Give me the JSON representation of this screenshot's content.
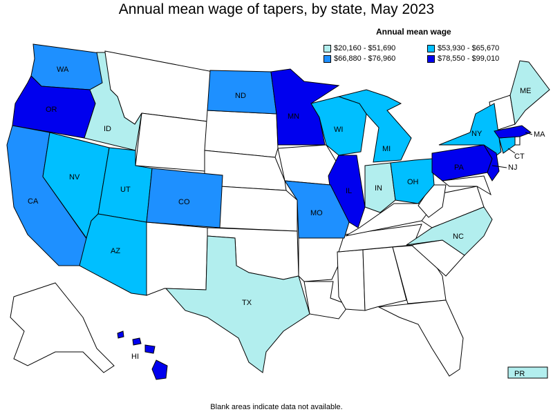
{
  "title": "Annual mean wage of tapers, by state, May 2023",
  "legend": {
    "title": "Annual mean wage",
    "items": [
      {
        "label": "$20,160 - $51,690",
        "color": "#b2eeee"
      },
      {
        "label": "$53,930 - $65,670",
        "color": "#00bfff"
      },
      {
        "label": "$66,880 - $76,960",
        "color": "#1e90ff"
      },
      {
        "label": "$78,550 - $99,010",
        "color": "#0000ee"
      }
    ]
  },
  "footnote": "Blank areas indicate data not available.",
  "states": {
    "WA": {
      "label": "WA",
      "tier": 2
    },
    "OR": {
      "label": "OR",
      "tier": 3
    },
    "ID": {
      "label": "ID",
      "tier": 0
    },
    "CA": {
      "label": "CA",
      "tier": 2
    },
    "NV": {
      "label": "NV",
      "tier": 1
    },
    "UT": {
      "label": "UT",
      "tier": 1
    },
    "AZ": {
      "label": "AZ",
      "tier": 1
    },
    "CO": {
      "label": "CO",
      "tier": 2
    },
    "ND": {
      "label": "ND",
      "tier": 2
    },
    "MN": {
      "label": "MN",
      "tier": 3
    },
    "WI": {
      "label": "WI",
      "tier": 1
    },
    "MI": {
      "label": "MI",
      "tier": 1
    },
    "IL": {
      "label": "IL",
      "tier": 3
    },
    "IN": {
      "label": "IN",
      "tier": 0
    },
    "OH": {
      "label": "OH",
      "tier": 1
    },
    "MO": {
      "label": "MO",
      "tier": 2
    },
    "TX": {
      "label": "TX",
      "tier": 0
    },
    "NC": {
      "label": "NC",
      "tier": 0
    },
    "PA": {
      "label": "PA",
      "tier": 3
    },
    "NY": {
      "label": "NY",
      "tier": 1
    },
    "NJ": {
      "label": "NJ",
      "tier": 3
    },
    "CT": {
      "label": "CT",
      "tier": 1
    },
    "MA": {
      "label": "MA",
      "tier": 3
    },
    "ME": {
      "label": "ME",
      "tier": 0
    },
    "HI": {
      "label": "HI",
      "tier": 3
    },
    "PR": {
      "label": "PR",
      "tier": 0
    }
  }
}
